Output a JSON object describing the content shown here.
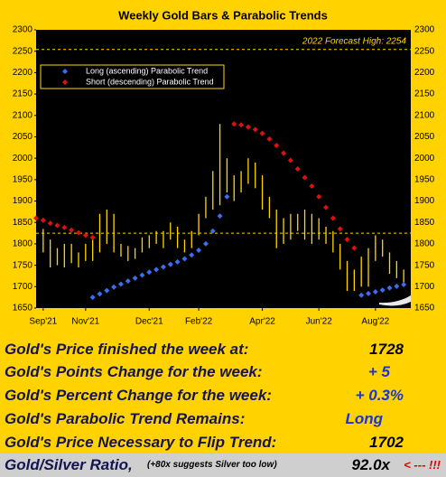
{
  "chart_data": {
    "type": "hilo",
    "title": "Weekly Gold Bars & Parabolic Trends",
    "color": "#ffd700",
    "legend": "upper left",
    "x": [
      1,
      2,
      3,
      4,
      5,
      6,
      7,
      8,
      9,
      10,
      11,
      12,
      13,
      14,
      15,
      16,
      17,
      18,
      19,
      20,
      21,
      22,
      23,
      24,
      25,
      26,
      27,
      28,
      29,
      30,
      31,
      32,
      33,
      34,
      35,
      36,
      37,
      38,
      39,
      40,
      41,
      42,
      43,
      44,
      45,
      46,
      47,
      48,
      49,
      50,
      51,
      52
    ],
    "high": [
      1835,
      1810,
      1790,
      1800,
      1800,
      1780,
      1800,
      1815,
      1870,
      1880,
      1870,
      1800,
      1795,
      1790,
      1815,
      1820,
      1830,
      1830,
      1850,
      1840,
      1810,
      1830,
      1870,
      1910,
      1970,
      2080,
      2000,
      1960,
      1970,
      2000,
      1990,
      1960,
      1910,
      1880,
      1860,
      1870,
      1870,
      1880,
      1870,
      1860,
      1840,
      1830,
      1800,
      1760,
      1740,
      1770,
      1790,
      1820,
      1810,
      1780,
      1760,
      1740
    ],
    "low": [
      1780,
      1745,
      1750,
      1745,
      1755,
      1745,
      1760,
      1760,
      1780,
      1800,
      1780,
      1770,
      1760,
      1765,
      1780,
      1790,
      1800,
      1790,
      1810,
      1790,
      1780,
      1790,
      1820,
      1860,
      1880,
      1890,
      1920,
      1900,
      1920,
      1940,
      1930,
      1880,
      1860,
      1790,
      1800,
      1810,
      1830,
      1810,
      1800,
      1810,
      1800,
      1780,
      1740,
      1690,
      1690,
      1700,
      1700,
      1760,
      1770,
      1730,
      1720,
      1710
    ],
    "series": [
      {
        "name": "Long (ascending) Parabolic Trend",
        "color": "#3a6df0",
        "x": [
          8,
          9,
          10,
          11,
          12,
          13,
          14,
          15,
          16,
          17,
          18,
          19,
          20,
          21,
          22,
          23,
          24,
          25,
          26,
          27,
          46,
          47,
          48,
          49,
          50,
          51,
          52
        ],
        "values": [
          1675,
          1683,
          1691,
          1699,
          1706,
          1713,
          1720,
          1727,
          1734,
          1740,
          1746,
          1752,
          1758,
          1765,
          1774,
          1785,
          1800,
          1830,
          1865,
          1910,
          1680,
          1684,
          1688,
          1692,
          1697,
          1701,
          1705
        ]
      },
      {
        "name": "Short (descending) Parabolic Trend",
        "color": "#e01010",
        "x": [
          0,
          1,
          2,
          3,
          4,
          5,
          6,
          7,
          8,
          28,
          29,
          30,
          31,
          32,
          33,
          34,
          35,
          36,
          37,
          38,
          39,
          40,
          41,
          42,
          43,
          44,
          45
        ],
        "values": [
          1860,
          1855,
          1848,
          1843,
          1838,
          1832,
          1826,
          1820,
          1815,
          2080,
          2078,
          2073,
          2067,
          2058,
          2045,
          2030,
          2012,
          1995,
          1975,
          1955,
          1935,
          1910,
          1885,
          1860,
          1835,
          1810,
          1790
        ]
      }
    ],
    "reference_lines": [
      {
        "value": 2254,
        "label": "2022 Forecast High: 2254"
      },
      {
        "value": 1825
      }
    ],
    "xlim": [
      0,
      53
    ],
    "xticks": [
      {
        "value": 1,
        "label": "Sep'21"
      },
      {
        "value": 7,
        "label": "Nov'21"
      },
      {
        "value": 16,
        "label": "Dec'21"
      },
      {
        "value": 23,
        "label": "Feb'22"
      },
      {
        "value": 32,
        "label": "Apr'22"
      },
      {
        "value": 40,
        "label": "Jun'22"
      },
      {
        "value": 48,
        "label": "Aug'22"
      }
    ],
    "ylim": [
      1650,
      2300
    ],
    "yticks": [
      1650,
      1700,
      1750,
      1800,
      1850,
      1900,
      1950,
      2000,
      2050,
      2100,
      2150,
      2200,
      2250,
      2300
    ]
  },
  "table": {
    "rows": [
      [
        "Gold's Price finished the week at:",
        "1728"
      ],
      [
        "Gold's Points Change for the week:",
        "+ 5"
      ],
      [
        "Gold's Percent Change for the week:",
        "+ 0.3%"
      ],
      [
        "Gold's Parabolic Trend Remains:",
        "Long"
      ],
      [
        "Gold's Price Necessary to Flip Trend:",
        "1702"
      ]
    ],
    "ratio_row": {
      "label": "Gold/Silver Ratio,",
      "note": "(+80x suggests Silver too low)",
      "value": "92.0x",
      "alert": "< --- !!!"
    }
  }
}
